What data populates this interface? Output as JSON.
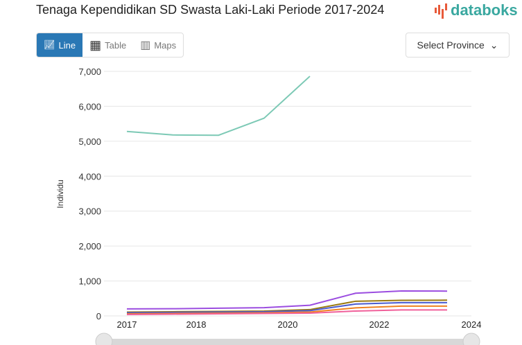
{
  "header": {
    "title": "Tenaga Kependidikan SD Swasta Laki-Laki Periode 2017-2024",
    "logo": "databoks"
  },
  "tabs": [
    {
      "label": "Line",
      "icon": "line-chart-icon",
      "active": true
    },
    {
      "label": "Table",
      "icon": "table-icon"
    },
    {
      "label": "Maps",
      "icon": "map-icon"
    }
  ],
  "province_select": {
    "label": "Select Province"
  },
  "chart_data": {
    "type": "line",
    "title": "Tenaga Kependidikan SD Swasta Laki-Laki Periode 2017-2024",
    "ylabel": "Individu",
    "xlabel": "",
    "ylim": [
      0,
      7000
    ],
    "y_ticks": [
      "0",
      "1,000",
      "2,000",
      "3,000",
      "4,000",
      "5,000",
      "6,000",
      "7,000"
    ],
    "x_ticks": [
      "2017",
      "2018",
      "2020",
      "2022",
      "2024"
    ],
    "x": [
      2017,
      2018,
      2019,
      2020,
      2021,
      2022,
      2023,
      2024
    ],
    "grid": true,
    "series": [
      {
        "color": "#7cc9b5",
        "values": [
          5280,
          5180,
          5170,
          5660,
          6860,
          null,
          null,
          null
        ]
      },
      {
        "color": "#9b4de0",
        "values": [
          200,
          205,
          220,
          235,
          305,
          650,
          715,
          710
        ]
      },
      {
        "color": "#9a7a10",
        "values": [
          110,
          120,
          130,
          140,
          180,
          420,
          445,
          450
        ]
      },
      {
        "color": "#4a5bd0",
        "values": [
          90,
          100,
          110,
          120,
          150,
          340,
          380,
          380
        ]
      },
      {
        "color": "#f08020",
        "values": [
          60,
          70,
          80,
          90,
          110,
          230,
          280,
          280
        ]
      },
      {
        "color": "#f0609a",
        "values": [
          40,
          50,
          60,
          70,
          80,
          140,
          170,
          170
        ]
      }
    ]
  }
}
